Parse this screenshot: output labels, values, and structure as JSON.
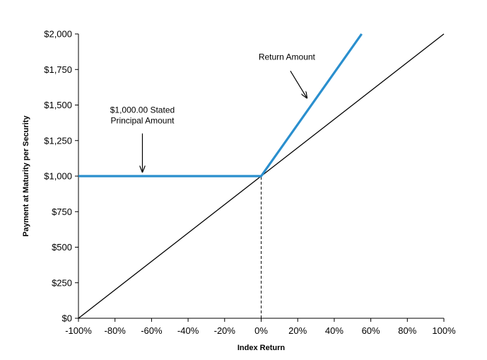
{
  "chart_data": {
    "type": "line",
    "title": "",
    "xlabel": "Index Return",
    "ylabel": "Payment at Maturity per Security",
    "xlim": [
      -100,
      100
    ],
    "ylim": [
      0,
      2000
    ],
    "grid": false,
    "x_ticks": [
      -100,
      -80,
      -60,
      -40,
      -20,
      0,
      20,
      40,
      60,
      80,
      100
    ],
    "x_tick_labels": [
      "-100%",
      "-80%",
      "-60%",
      "-40%",
      "-20%",
      "0%",
      "20%",
      "40%",
      "60%",
      "80%",
      "100%"
    ],
    "y_ticks": [
      0,
      250,
      500,
      750,
      1000,
      1250,
      1500,
      1750,
      2000
    ],
    "y_tick_labels": [
      "$0",
      "$250",
      "$500",
      "$750",
      "$1,000",
      "$1,250",
      "$1,500",
      "$1,750",
      "$2,000"
    ],
    "series": [
      {
        "color": "#000000",
        "x": [
          -100,
          100
        ],
        "y": [
          0,
          2000
        ]
      },
      {
        "color": "#2a8fce",
        "x": [
          -100,
          0,
          55
        ],
        "y": [
          1000,
          1000,
          2000
        ]
      }
    ],
    "reference_line": {
      "x": [
        0,
        0
      ],
      "y": [
        0,
        1000
      ],
      "style": "dashed"
    },
    "annotations": [
      {
        "lines": [
          "$1,000.00 Stated",
          "Principal Amount"
        ],
        "arrow_x": [
          -65,
          -65
        ],
        "arrow_y": [
          1300,
          1030
        ]
      },
      {
        "lines": [
          "Return Amount"
        ],
        "arrow_x": [
          16,
          25
        ],
        "arrow_y": [
          1740,
          1550
        ]
      }
    ]
  }
}
